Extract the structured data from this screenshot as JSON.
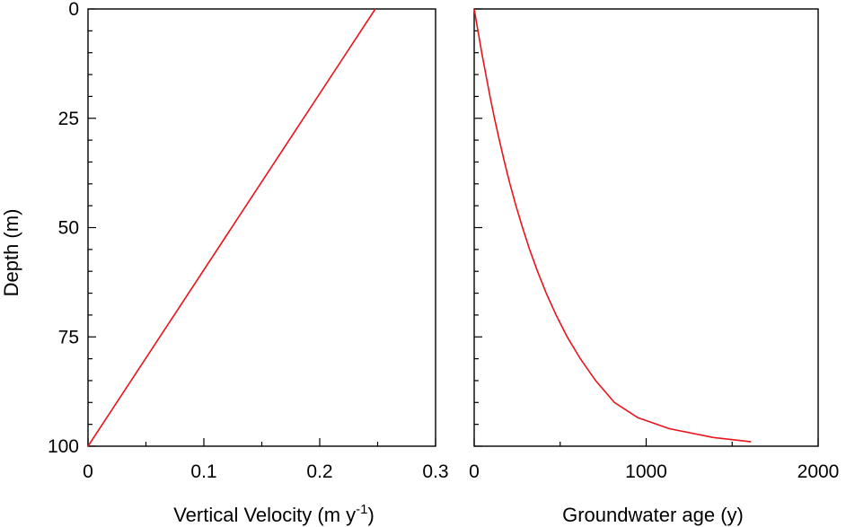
{
  "chart_data": [
    {
      "type": "line",
      "xlabel": "Vertical Velocity (m y",
      "xlabel_superscript": "-1",
      "xlabel_suffix": ")",
      "ylabel": "Depth (m)",
      "xlim": [
        0,
        0.3
      ],
      "ylim": [
        0,
        100
      ],
      "y_inverted": true,
      "x_ticks": [
        0,
        0.1,
        0.2,
        0.3
      ],
      "x_tick_labels": [
        "0",
        "0.1",
        "0.2",
        "0.3"
      ],
      "y_ticks": [
        0,
        25,
        50,
        75,
        100
      ],
      "y_tick_labels": [
        "0",
        "25",
        "50",
        "75",
        "100"
      ],
      "grid": false,
      "series": [
        {
          "color": "#e8141b",
          "x": [
            0.248,
            0
          ],
          "y": [
            0,
            100
          ]
        }
      ]
    },
    {
      "type": "line",
      "xlabel": "Groundwater age (y)",
      "ylabel": "",
      "xlim": [
        0,
        2000
      ],
      "ylim": [
        0,
        100
      ],
      "y_inverted": true,
      "x_ticks": [
        0,
        1000,
        2000
      ],
      "x_tick_labels": [
        "0",
        "1000",
        "2000"
      ],
      "y_ticks": [
        0,
        25,
        50,
        75,
        100
      ],
      "y_tick_labels": [],
      "grid": false,
      "series": [
        {
          "color": "#e8141b",
          "x": [
            0,
            22,
            44,
            68,
            92,
            118,
            146,
            176,
            208,
            243,
            281,
            322,
            368,
            419,
            476,
            541,
            617,
            706,
            815,
            952,
            1135,
            1390,
            1610
          ],
          "y": [
            0,
            5,
            10,
            15,
            20,
            25,
            30,
            35,
            40,
            45,
            50,
            55,
            60,
            65,
            70,
            75,
            80,
            85,
            90,
            93.5,
            96,
            98,
            99
          ]
        }
      ]
    }
  ]
}
